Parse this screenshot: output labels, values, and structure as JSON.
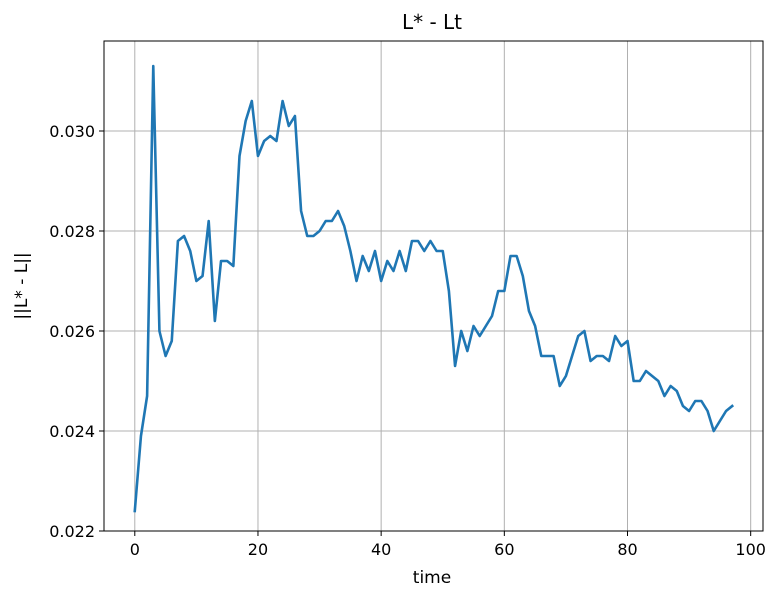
{
  "chart_data": {
    "type": "line",
    "title": "L* - Lt",
    "xlabel": "time",
    "ylabel": "||L* - L||",
    "xlim": [
      -5,
      102
    ],
    "ylim": [
      0.022,
      0.0318
    ],
    "xticks": [
      0,
      20,
      40,
      60,
      80,
      100
    ],
    "xtick_labels": [
      "0",
      "20",
      "40",
      "60",
      "80",
      "100"
    ],
    "yticks": [
      0.022,
      0.024,
      0.026,
      0.028,
      0.03
    ],
    "ytick_labels": [
      "0.022",
      "0.024",
      "0.026",
      "0.028",
      "0.030"
    ],
    "grid": true,
    "series": [
      {
        "color": "#1f77b4",
        "x": [
          0,
          1,
          2,
          3,
          4,
          5,
          6,
          7,
          8,
          9,
          10,
          11,
          12,
          13,
          14,
          15,
          16,
          17,
          18,
          19,
          20,
          21,
          22,
          23,
          24,
          25,
          26,
          27,
          28,
          29,
          30,
          31,
          32,
          33,
          34,
          35,
          36,
          37,
          38,
          39,
          40,
          41,
          42,
          43,
          44,
          45,
          46,
          47,
          48,
          49,
          50,
          51,
          52,
          53,
          54,
          55,
          56,
          57,
          58,
          59,
          60,
          61,
          62,
          63,
          64,
          65,
          66,
          67,
          68,
          69,
          70,
          71,
          72,
          73,
          74,
          75,
          76,
          77,
          78,
          79,
          80,
          81,
          82,
          83,
          84,
          85,
          86,
          87,
          88,
          89,
          90,
          91,
          92,
          93,
          94,
          95,
          96,
          97
        ],
        "values": [
          0.0224,
          0.0239,
          0.0247,
          0.0313,
          0.026,
          0.0255,
          0.0258,
          0.0278,
          0.0279,
          0.0276,
          0.027,
          0.0271,
          0.0282,
          0.0262,
          0.0274,
          0.0274,
          0.0273,
          0.0295,
          0.0302,
          0.0306,
          0.0295,
          0.0298,
          0.0299,
          0.0298,
          0.0306,
          0.0301,
          0.0303,
          0.0284,
          0.0279,
          0.0279,
          0.028,
          0.0282,
          0.0282,
          0.0284,
          0.0281,
          0.0276,
          0.027,
          0.0275,
          0.0272,
          0.0276,
          0.027,
          0.0274,
          0.0272,
          0.0276,
          0.0272,
          0.0278,
          0.0278,
          0.0276,
          0.0278,
          0.0276,
          0.0276,
          0.0268,
          0.0253,
          0.026,
          0.0256,
          0.0261,
          0.0259,
          0.0261,
          0.0263,
          0.0268,
          0.0268,
          0.0275,
          0.0275,
          0.0271,
          0.0264,
          0.0261,
          0.0255,
          0.0255,
          0.0255,
          0.0249,
          0.0251,
          0.0255,
          0.0259,
          0.026,
          0.0254,
          0.0255,
          0.0255,
          0.0254,
          0.0259,
          0.0257,
          0.0258,
          0.025,
          0.025,
          0.0252,
          0.0251,
          0.025,
          0.0247,
          0.0249,
          0.0248,
          0.0245,
          0.0244,
          0.0246,
          0.0246,
          0.0244,
          0.024,
          0.0242,
          0.0244,
          0.0245
        ]
      }
    ]
  }
}
